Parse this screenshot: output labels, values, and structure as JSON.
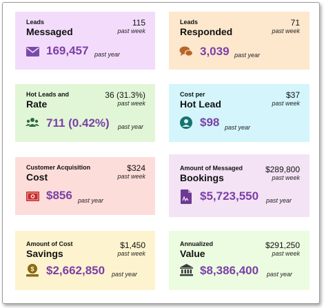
{
  "colors": {
    "purple_text": "#7b3fa6",
    "icon_color": "#7a4aa8",
    "card_messaged": "#f3dcfb",
    "card_responded": "#fde7cd",
    "card_hot_rate": "#e1f6d6",
    "card_cost_hot": "#d3f5fb",
    "card_acq_cost": "#fdddda",
    "card_bookings": "#f3e3f5",
    "card_savings": "#fdf3cf",
    "card_value": "#ecfce1"
  },
  "cards": {
    "messaged": {
      "small": "Leads",
      "big": "Messaged",
      "week_value": "115",
      "week_label": "past week",
      "year_value": "169,457",
      "year_label": "past year",
      "icon": "envelope-icon"
    },
    "responded": {
      "small": "Leads",
      "big": "Responded",
      "week_value": "71",
      "week_label": "past week",
      "year_value": "3,039",
      "year_label": "past year",
      "icon": "chat-bubbles-icon"
    },
    "hot_rate": {
      "small": "Hot Leads and",
      "big": "Rate",
      "week_value": "36 (31.3%)",
      "week_label": "past week",
      "year_value": "711 (0.42%)",
      "year_label": "past year",
      "icon": "users-icon"
    },
    "cost_hot": {
      "small": "Cost per",
      "big": "Hot Lead",
      "week_value": "$37",
      "week_label": "past week",
      "year_value": "$98",
      "year_label": "past year",
      "icon": "user-circle-icon"
    },
    "acq_cost": {
      "small": "Customer Acquisition",
      "big": "Cost",
      "week_value": "$324",
      "week_label": "past week",
      "year_value": "$856",
      "year_label": "past year",
      "icon": "money-bill-icon"
    },
    "bookings": {
      "small": "Amount of Messaged",
      "big": "Bookings",
      "week_value": "$289,800",
      "week_label": "past week",
      "year_value": "$5,723,550",
      "year_label": "past year",
      "icon": "signed-document-icon"
    },
    "savings": {
      "small": "Amount of Cost",
      "big": "Savings",
      "week_value": "$1,450",
      "week_label": "past week",
      "year_value": "$2,662,850",
      "year_label": "past year",
      "icon": "coin-stack-icon"
    },
    "value": {
      "small": "Annualized",
      "big": "Value",
      "week_value": "$291,250",
      "week_label": "past week",
      "year_value": "$8,386,400",
      "year_label": "past year",
      "icon": "bank-icon"
    }
  }
}
